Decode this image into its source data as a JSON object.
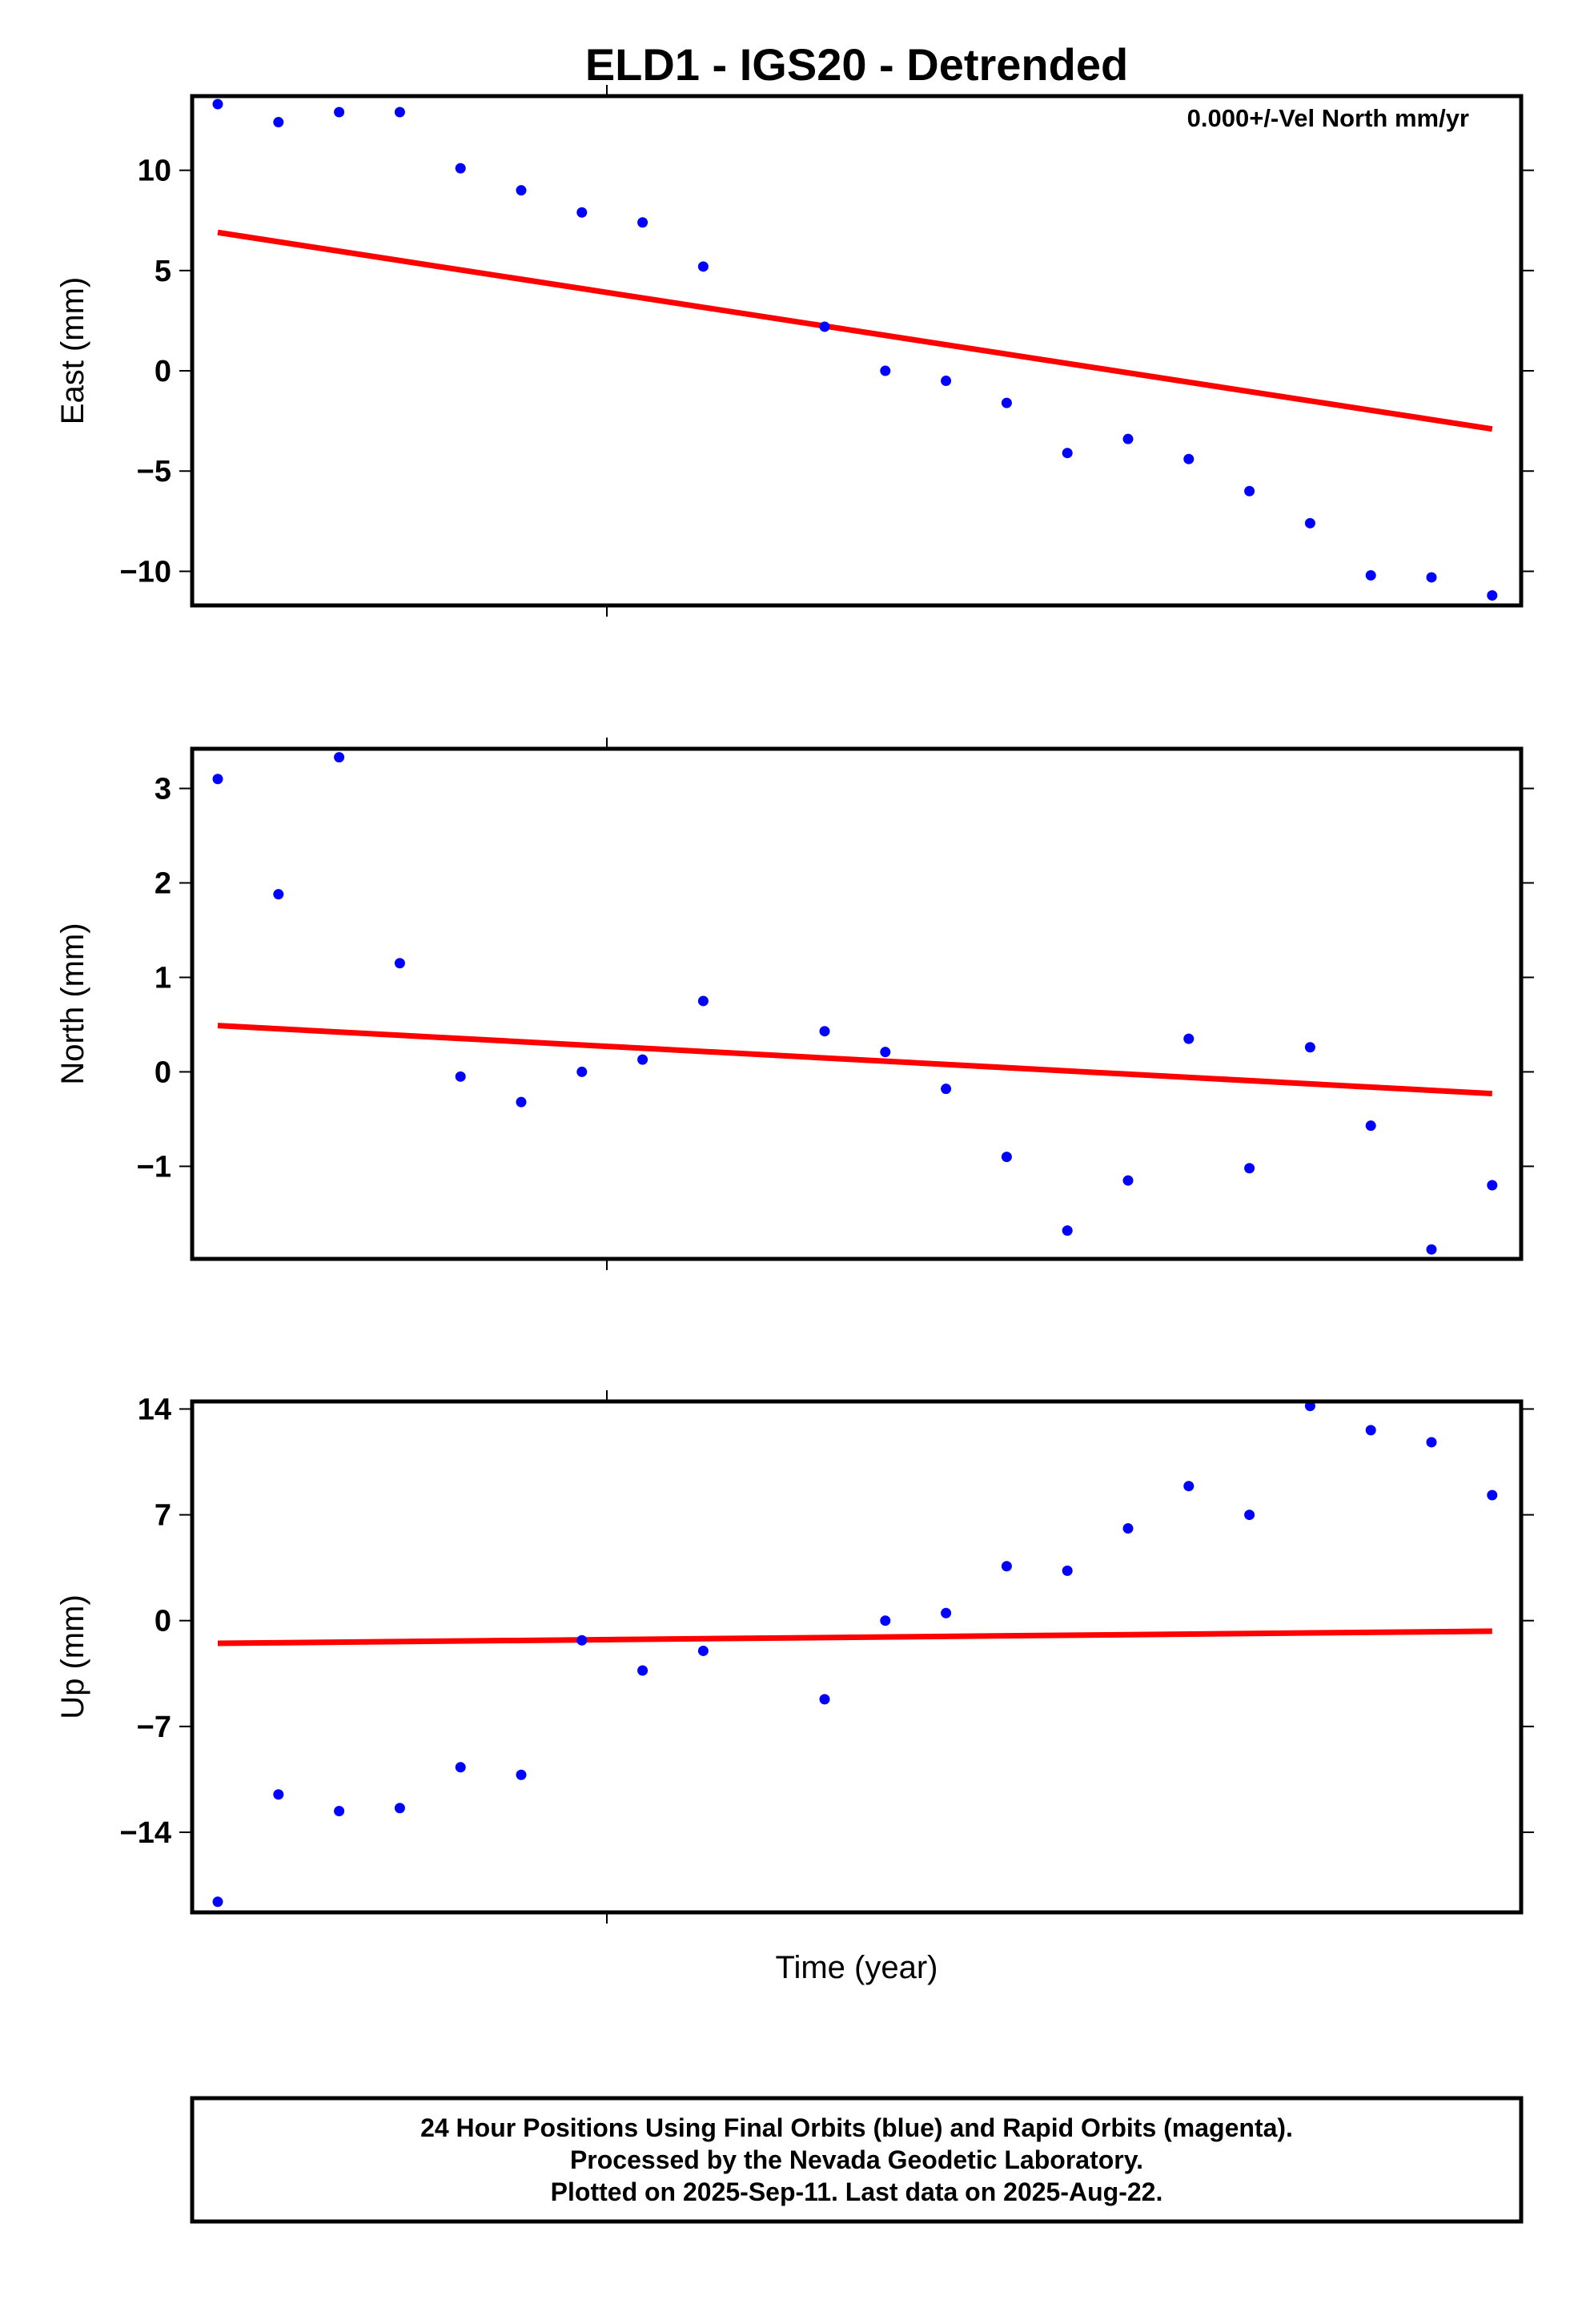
{
  "colors": {
    "point": "#0000ff",
    "trend": "#ff0000",
    "frame": "#000000"
  },
  "footer": {
    "line1": "24 Hour Positions Using Final Orbits (blue) and Rapid Orbits (magenta).",
    "line2": "Processed by the Nevada Geodetic Laboratory.",
    "line3": "Plotted on 2025-Sep-11. Last data on 2025-Aug-22."
  },
  "chart_data": [
    {
      "type": "scatter",
      "title": "ELD1 - IGS20 - Detrended",
      "annotation": "0.000+/-Vel North mm/yr",
      "xlabel": "",
      "ylabel": "East (mm)",
      "ylim": [
        -11.7,
        13.7
      ],
      "yticks": [
        10,
        5,
        0,
        -5,
        -10
      ],
      "ytick_labels": [
        "10",
        "5",
        "0",
        "−5",
        "−10"
      ],
      "grid": false,
      "x": [
        0,
        1,
        2,
        3,
        4,
        5,
        6,
        7,
        8,
        10,
        11,
        12,
        13,
        14,
        15,
        16,
        17,
        18,
        19,
        20,
        21
      ],
      "series": [
        {
          "values": [
            13.3,
            12.4,
            12.9,
            12.9,
            10.1,
            9.0,
            7.9,
            7.4,
            5.2,
            2.2,
            0.0,
            -0.5,
            -1.6,
            -4.1,
            -3.4,
            -4.4,
            -6.0,
            -7.6,
            -10.2,
            -10.3,
            -11.2
          ]
        }
      ],
      "trend": {
        "values": [
          6.9,
          -2.9
        ]
      }
    },
    {
      "type": "scatter",
      "xlabel": "",
      "ylabel": "North (mm)",
      "ylim": [
        -1.98,
        3.42
      ],
      "yticks": [
        3,
        2,
        1,
        0,
        -1
      ],
      "ytick_labels": [
        "3",
        "2",
        "1",
        "0",
        "−1"
      ],
      "grid": false,
      "x": [
        0,
        1,
        2,
        3,
        4,
        5,
        6,
        7,
        8,
        10,
        11,
        12,
        13,
        14,
        15,
        16,
        17,
        18,
        19,
        20,
        21
      ],
      "series": [
        {
          "values": [
            3.1,
            1.88,
            3.33,
            1.15,
            -0.05,
            -0.32,
            0.0,
            0.13,
            0.75,
            0.43,
            0.21,
            -0.18,
            -0.9,
            -1.68,
            -1.15,
            0.35,
            -1.02,
            0.26,
            -0.57,
            -1.88,
            -1.2
          ]
        }
      ],
      "trend": {
        "values": [
          0.49,
          -0.23
        ]
      }
    },
    {
      "type": "scatter",
      "xlabel": "Time (year)",
      "ylabel": "Up (mm)",
      "ylim": [
        -19.3,
        14.5
      ],
      "yticks": [
        14,
        7,
        0,
        -7,
        -14
      ],
      "ytick_labels": [
        "14",
        "7",
        "0",
        "−7",
        "−14"
      ],
      "grid": false,
      "x": [
        0,
        1,
        2,
        3,
        4,
        5,
        6,
        7,
        8,
        10,
        11,
        12,
        13,
        14,
        15,
        16,
        17,
        18,
        19,
        20,
        21
      ],
      "series": [
        {
          "values": [
            -18.6,
            -11.5,
            -12.6,
            -12.4,
            -9.7,
            -10.2,
            -1.3,
            -3.3,
            -2.0,
            -5.2,
            0.0,
            0.5,
            3.6,
            3.3,
            6.1,
            8.9,
            7.0,
            14.2,
            12.6,
            11.8,
            8.3
          ]
        }
      ],
      "trend": {
        "values": [
          -1.5,
          -0.7
        ]
      }
    }
  ]
}
